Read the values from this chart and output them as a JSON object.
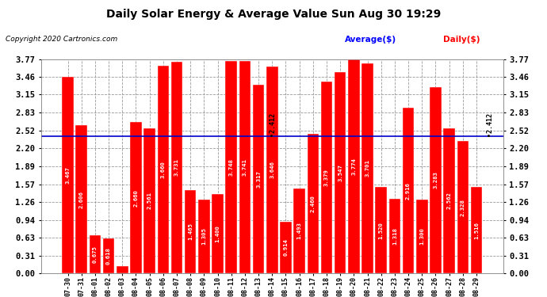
{
  "title": "Daily Solar Energy & Average Value Sun Aug 30 19:29",
  "copyright": "Copyright 2020 Cartronics.com",
  "legend_average": "Average($)",
  "legend_daily": "Daily($)",
  "average_value": 2.412,
  "categories": [
    "07-30",
    "07-31",
    "08-01",
    "08-02",
    "08-03",
    "08-04",
    "08-05",
    "08-06",
    "08-07",
    "08-08",
    "08-09",
    "08-10",
    "08-11",
    "08-12",
    "08-13",
    "08-14",
    "08-15",
    "08-16",
    "08-17",
    "08-18",
    "08-19",
    "08-20",
    "08-21",
    "08-22",
    "08-23",
    "08-24",
    "08-25",
    "08-26",
    "08-27",
    "08-28",
    "08-29"
  ],
  "values": [
    3.467,
    2.606,
    0.675,
    0.618,
    0.123,
    2.66,
    2.561,
    3.66,
    3.731,
    1.465,
    1.305,
    1.4,
    3.748,
    3.741,
    3.317,
    3.646,
    0.914,
    1.493,
    2.46,
    3.379,
    3.547,
    3.774,
    3.701,
    1.52,
    1.318,
    2.916,
    1.3,
    3.283,
    2.562,
    2.328,
    1.516
  ],
  "bar_color": "#ff0000",
  "avg_line_color": "#0000cc",
  "avg_text_color": "#000000",
  "title_color": "#000000",
  "copyright_color": "#000000",
  "legend_avg_color": "#0000ff",
  "legend_daily_color": "#ff0000",
  "ylim": [
    0.0,
    3.77
  ],
  "yticks": [
    0.0,
    0.31,
    0.63,
    0.94,
    1.26,
    1.57,
    1.89,
    2.2,
    2.52,
    2.83,
    3.15,
    3.46,
    3.77
  ],
  "background_color": "#ffffff",
  "bar_edge_color": "#ffffff",
  "grid_color": "#999999",
  "figsize": [
    6.9,
    3.75
  ],
  "dpi": 100
}
